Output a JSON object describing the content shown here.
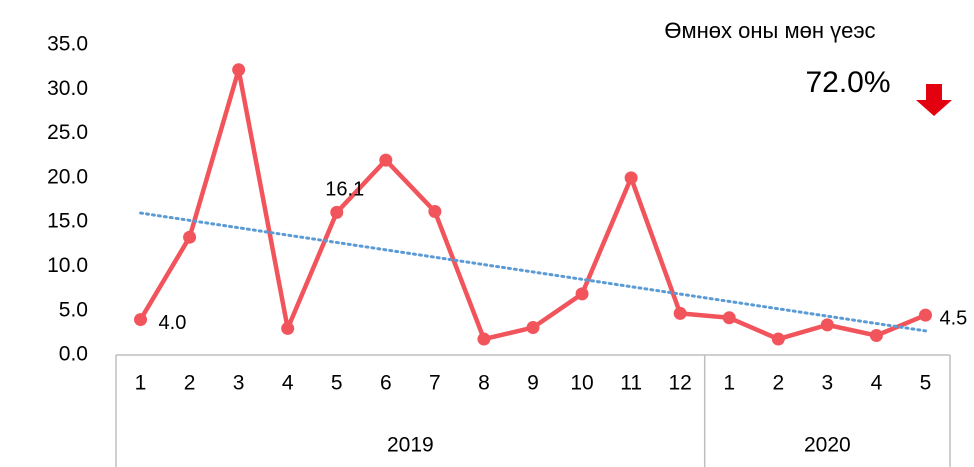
{
  "chart_data": {
    "type": "line",
    "groups": [
      {
        "name": "2019",
        "categories": [
          "1",
          "2",
          "3",
          "4",
          "5",
          "6",
          "7",
          "8",
          "9",
          "10",
          "11",
          "12"
        ]
      },
      {
        "name": "2020",
        "categories": [
          "1",
          "2",
          "3",
          "4",
          "5"
        ]
      }
    ],
    "series": [
      {
        "name": null,
        "color": "#f2545b",
        "values": [
          4.0,
          13.3,
          32.2,
          3.0,
          16.1,
          22.0,
          16.2,
          1.8,
          3.1,
          6.9,
          20.0,
          4.7,
          4.2,
          1.8,
          3.4,
          2.2,
          4.5
        ],
        "value_labels": [
          "4.0",
          null,
          null,
          null,
          "16.1",
          null,
          null,
          null,
          null,
          null,
          null,
          null,
          null,
          null,
          null,
          null,
          "4.5"
        ]
      }
    ],
    "trendline": {
      "type": "linear",
      "color": "#5b9bd5"
    },
    "ylim": [
      0,
      35
    ],
    "yticks": [
      {
        "value": 0,
        "label": "0.0"
      },
      {
        "value": 5,
        "label": "5.0"
      },
      {
        "value": 10,
        "label": "10.0"
      },
      {
        "value": 15,
        "label": "15.0"
      },
      {
        "value": 20,
        "label": "20.0"
      },
      {
        "value": 25,
        "label": "25.0"
      },
      {
        "value": 30,
        "label": "30.0"
      },
      {
        "value": 35,
        "label": "35.0"
      }
    ],
    "grid": false,
    "annotation": {
      "text": "Өмнөх оны мөн үеэс",
      "label": "72.0%",
      "direction": "down",
      "color": "#e3000f"
    }
  }
}
